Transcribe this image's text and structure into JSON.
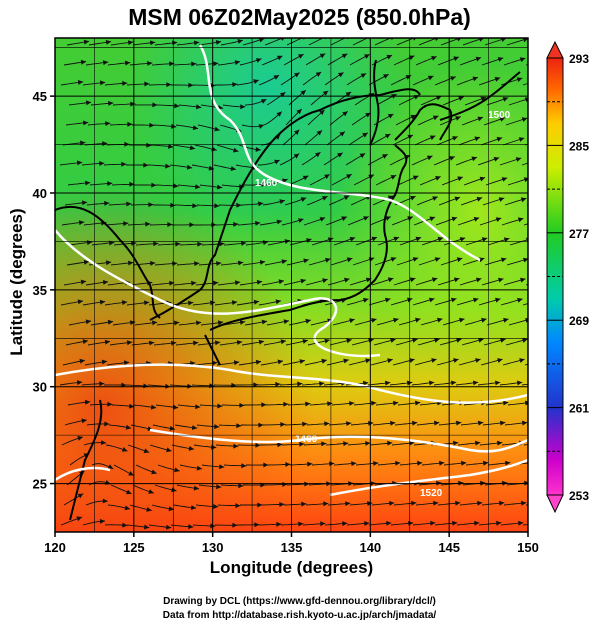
{
  "title": "MSM 06Z02May2025 (850.0hPa)",
  "x_axis": {
    "label": "Longitude (degrees)",
    "ticks": [
      "120",
      "125",
      "130",
      "135",
      "140",
      "145",
      "150"
    ]
  },
  "y_axis": {
    "label": "Latitude  (degrees)",
    "ticks": [
      "25",
      "30",
      "35",
      "40",
      "45"
    ]
  },
  "colorbar": {
    "ticks": [
      "293",
      "285",
      "277",
      "269",
      "261",
      "253"
    ]
  },
  "contour_labels": [
    "1460",
    "1460",
    "1520",
    "1500"
  ],
  "credits": {
    "line1": "Drawing by DCL (https://www.gfd-dennou.org/library/dcl/)",
    "line2": "Data from http://database.rish.kyoto-u.ac.jp/arch/jmadata/"
  }
}
